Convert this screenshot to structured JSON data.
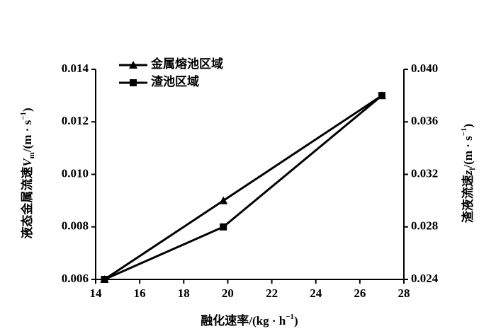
{
  "chart_data": {
    "type": "line",
    "xlabel": [
      "融化速率/(kg · h",
      "−1",
      ")"
    ],
    "ylabel": [
      "液态金属流速",
      "V",
      "m",
      "/(m · s",
      "−1",
      ")"
    ],
    "y2label": [
      "渣液流速",
      "z",
      "l",
      "/(m · s",
      "−1",
      ")"
    ],
    "x": [
      14.4,
      19.8,
      27
    ],
    "series": [
      {
        "name": "金属熔池区域",
        "color": "#000000",
        "marker": "triangle",
        "values": [
          0.006,
          0.009,
          0.013
        ]
      },
      {
        "name": "渣池区域",
        "color": "#000000",
        "marker": "square",
        "axis": "y2",
        "values": [
          0.024,
          0.028,
          0.038
        ]
      }
    ],
    "xlim": [
      14,
      28
    ],
    "xticks": [
      14,
      16,
      18,
      20,
      22,
      24,
      26,
      28
    ],
    "ylim": [
      0.006,
      0.014
    ],
    "yticks": [
      0.006,
      0.008,
      {
        "value": 0.01,
        "label": "0.010"
      },
      0.012,
      0.014
    ],
    "y2lim": [
      0.024,
      0.04
    ],
    "y2ticks": [
      0.024,
      0.028,
      0.032,
      0.036,
      {
        "value": 0.04,
        "label": "0.040"
      }
    ],
    "legend": "upper left",
    "grid": false
  }
}
